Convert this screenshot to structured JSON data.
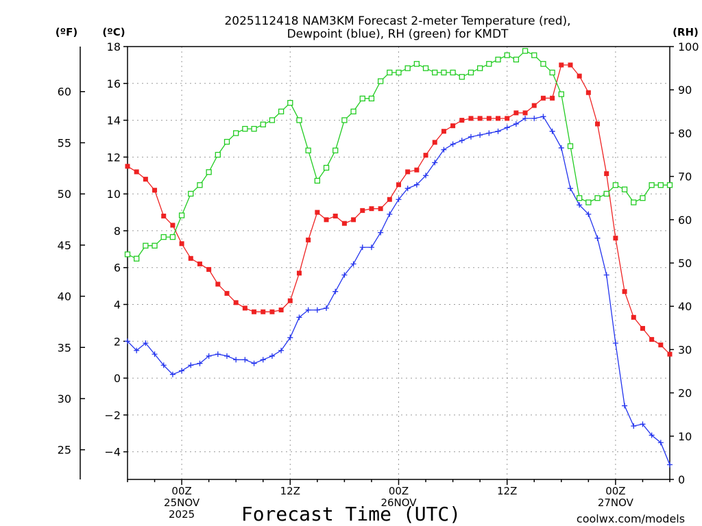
{
  "title_lines": [
    "2025112418 NAM3KM Forecast 2-meter Temperature (red),",
    "Dewpoint (blue), RH (green) for KMDT"
  ],
  "units": {
    "fahrenheit": "(ºF)",
    "celsius": "(ºC)",
    "rh": "(RH)"
  },
  "xlabel": "Forecast Time (UTC)",
  "credit": "coolwx.com/models",
  "colors": {
    "temperature": "#ee2222",
    "dewpoint": "#2233ee",
    "rh": "#22cc22",
    "grid": "#999999",
    "credit": "#dd3333"
  },
  "chart_data": {
    "type": "line",
    "title": "2025112418 NAM3KM Forecast 2-meter Temperature (red), Dewpoint (blue), RH (green) for KMDT",
    "x_hours": [
      0,
      1,
      2,
      3,
      4,
      5,
      6,
      7,
      8,
      9,
      10,
      11,
      12,
      13,
      14,
      15,
      16,
      17,
      18,
      19,
      20,
      21,
      22,
      23,
      24,
      25,
      26,
      27,
      28,
      29,
      30,
      31,
      32,
      33,
      34,
      35,
      36,
      37,
      38,
      39,
      40,
      41,
      42,
      43,
      44,
      45,
      46,
      47,
      48,
      49,
      50,
      51,
      52,
      53,
      54,
      55,
      56,
      57,
      58,
      59,
      60
    ],
    "x_range": [
      0,
      60
    ],
    "x_ticks": [
      {
        "hour": 6,
        "lines": [
          "00Z",
          "25NOV",
          "2025"
        ]
      },
      {
        "hour": 18,
        "lines": [
          "12Z"
        ]
      },
      {
        "hour": 30,
        "lines": [
          "00Z",
          "26NOV"
        ]
      },
      {
        "hour": 42,
        "lines": [
          "12Z"
        ]
      },
      {
        "hour": 54,
        "lines": [
          "00Z",
          "27NOV"
        ]
      }
    ],
    "y_left_celsius": {
      "range": [
        -5.5,
        18
      ],
      "ticks": [
        -4,
        -2,
        0,
        2,
        4,
        6,
        8,
        10,
        12,
        14,
        16,
        18
      ]
    },
    "y_left_fahrenheit": {
      "range": [
        22.1,
        64.4
      ],
      "ticks": [
        25,
        30,
        35,
        40,
        45,
        50,
        55,
        60
      ]
    },
    "y_right_rh": {
      "range": [
        0,
        100
      ],
      "ticks": [
        0,
        10,
        20,
        30,
        40,
        50,
        60,
        70,
        80,
        90,
        100
      ]
    },
    "series": [
      {
        "name": "2-meter Temperature",
        "unit": "C",
        "marker": "filled-square",
        "values": [
          11.5,
          11.2,
          10.8,
          10.2,
          8.8,
          8.3,
          7.3,
          6.5,
          6.2,
          5.9,
          5.1,
          4.6,
          4.1,
          3.8,
          3.6,
          3.6,
          3.6,
          3.7,
          4.2,
          5.7,
          7.5,
          9.0,
          8.6,
          8.8,
          8.4,
          8.6,
          9.1,
          9.2,
          9.2,
          9.7,
          10.5,
          11.2,
          11.3,
          12.1,
          12.8,
          13.4,
          13.7,
          14.0,
          14.1,
          14.1,
          14.1,
          14.1,
          14.1,
          14.4,
          14.4,
          14.8,
          15.2,
          15.2,
          17.0,
          17.0,
          16.4,
          15.5,
          13.8,
          11.1,
          7.6,
          4.7,
          3.3,
          2.7,
          2.1,
          1.8,
          1.3
        ]
      },
      {
        "name": "2-meter Dewpoint",
        "unit": "C",
        "marker": "plus",
        "values": [
          2.0,
          1.5,
          1.9,
          1.3,
          0.7,
          0.2,
          0.4,
          0.7,
          0.8,
          1.2,
          1.3,
          1.2,
          1.0,
          1.0,
          0.8,
          1.0,
          1.2,
          1.5,
          2.2,
          3.3,
          3.7,
          3.7,
          3.8,
          4.7,
          5.6,
          6.2,
          7.1,
          7.1,
          7.9,
          8.9,
          9.7,
          10.3,
          10.5,
          11.0,
          11.7,
          12.4,
          12.7,
          12.9,
          13.1,
          13.2,
          13.3,
          13.4,
          13.6,
          13.8,
          14.1,
          14.1,
          14.2,
          13.4,
          12.5,
          10.3,
          9.4,
          8.9,
          7.6,
          5.6,
          1.9,
          -1.5,
          -2.6,
          -2.5,
          -3.1,
          -3.5,
          -4.7
        ]
      },
      {
        "name": "Relative Humidity",
        "unit": "%",
        "marker": "open-square",
        "values": [
          52,
          51,
          54,
          54,
          56,
          56,
          61,
          66,
          68,
          71,
          75,
          78,
          80,
          81,
          81,
          82,
          83,
          85,
          87,
          83,
          76,
          69,
          72,
          76,
          83,
          85,
          88,
          88,
          92,
          94,
          94,
          95,
          96,
          95,
          94,
          94,
          94,
          93,
          94,
          95,
          96,
          97,
          98,
          97,
          99,
          98,
          96,
          94,
          89,
          77,
          65,
          64,
          65,
          66,
          68,
          67,
          64,
          65,
          68,
          68,
          68
        ]
      }
    ],
    "grid": true
  }
}
